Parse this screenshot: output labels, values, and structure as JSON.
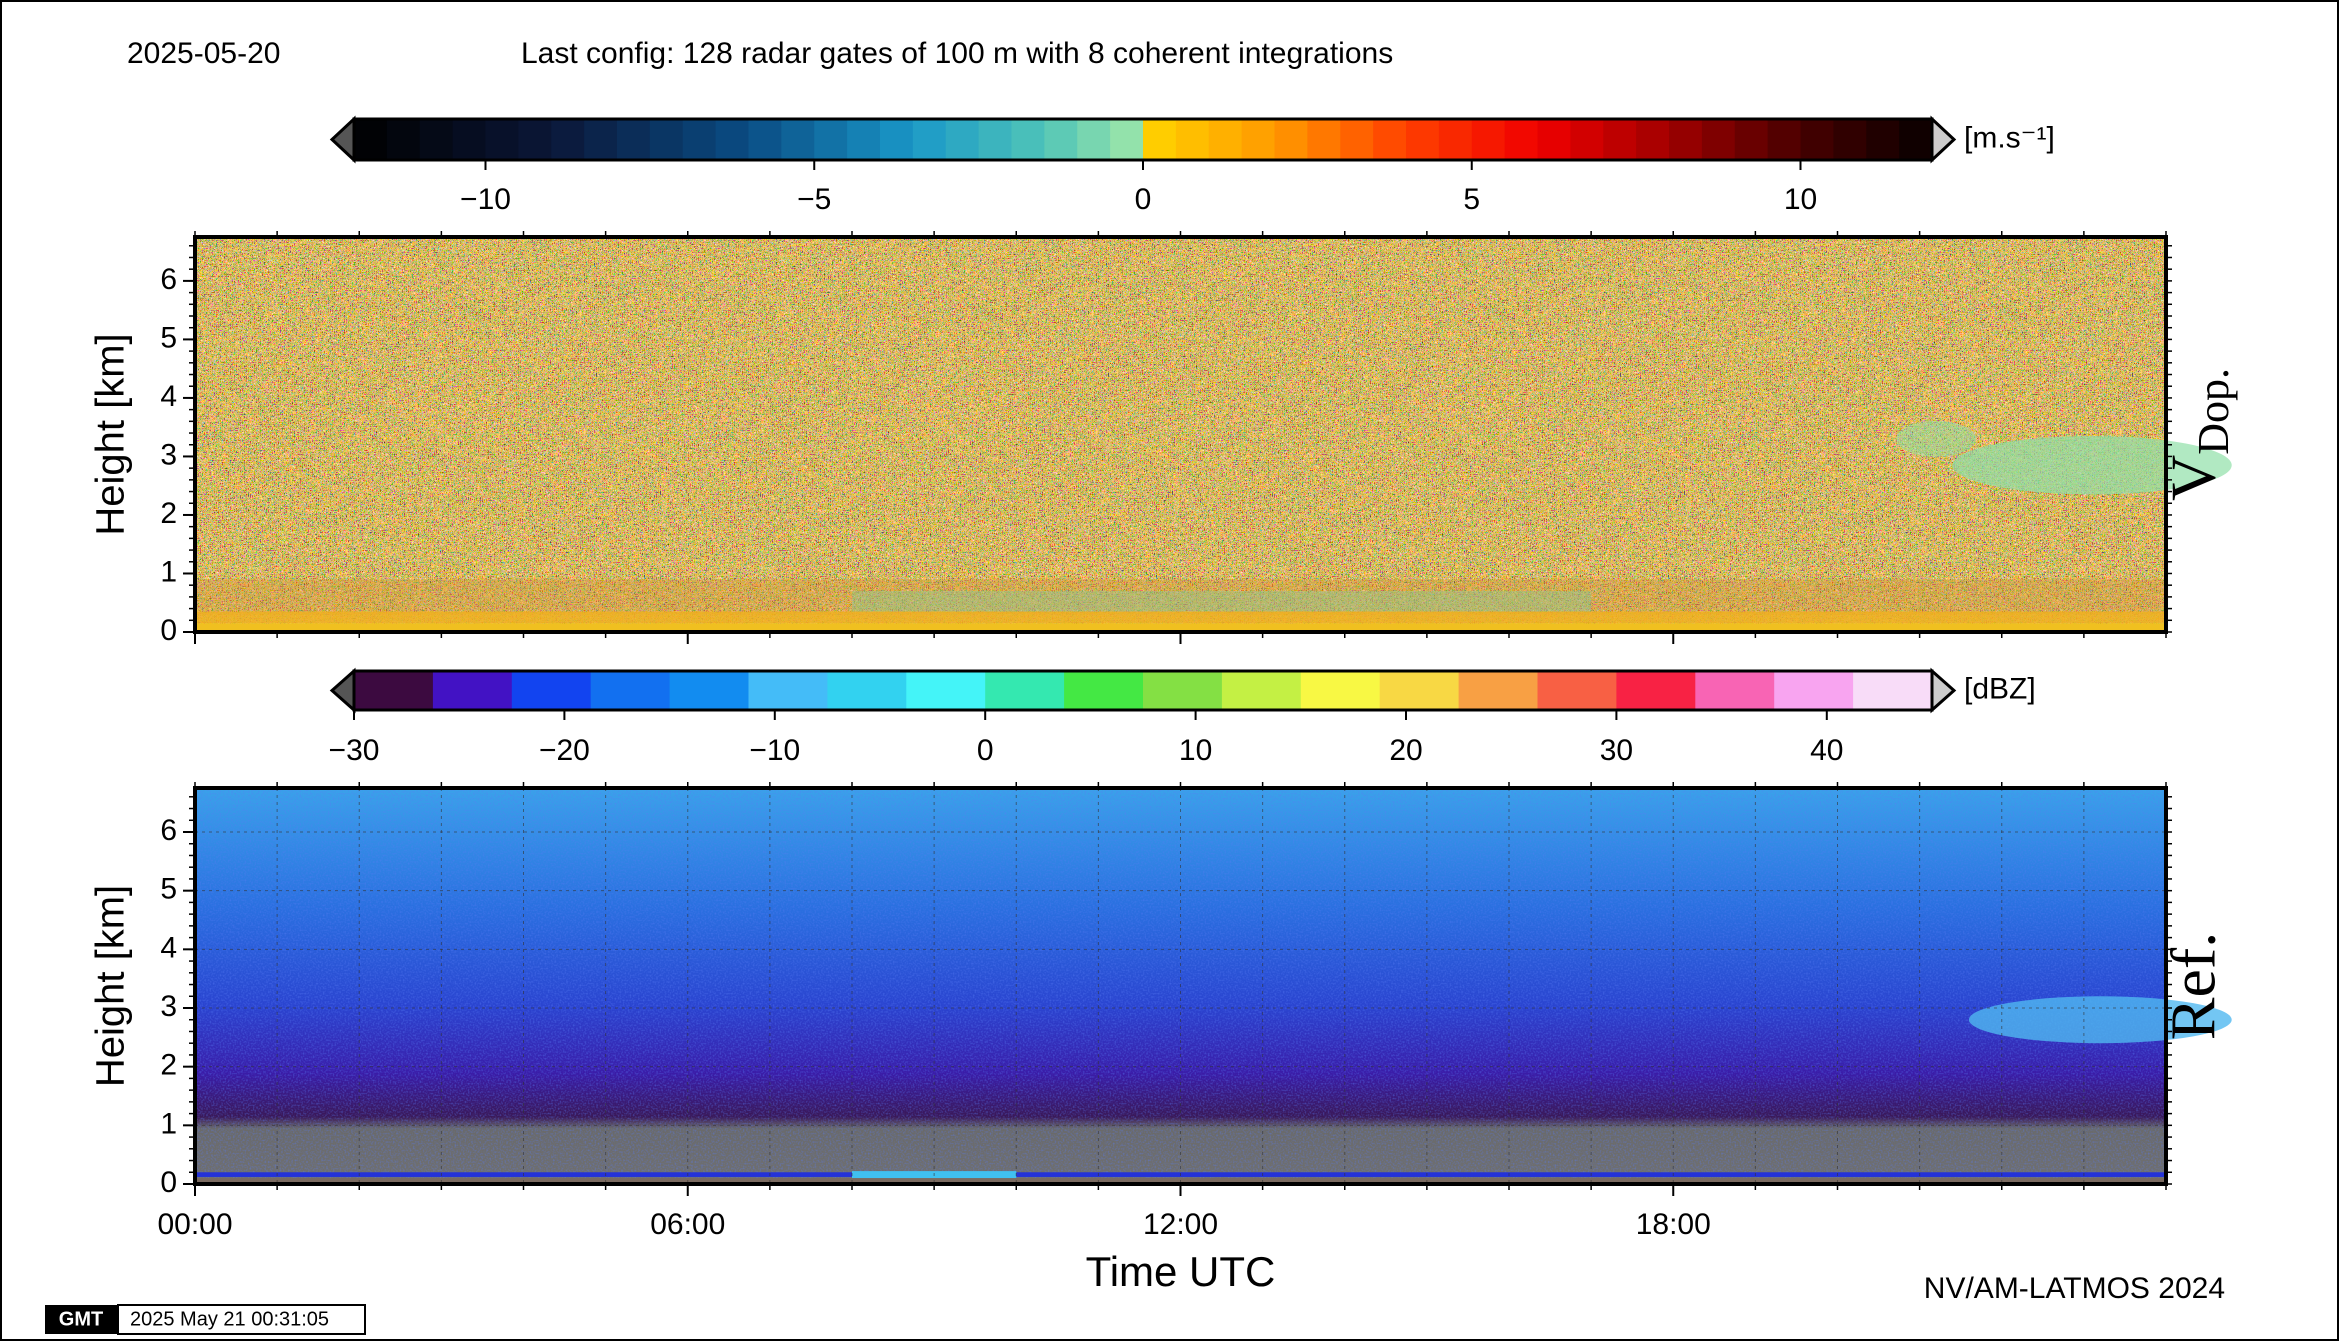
{
  "header": {
    "date": "2025-05-20",
    "config": "Last config: 128 radar gates of 100 m with 8 coherent integrations"
  },
  "footer": {
    "credit": "NV/AM-LATMOS 2024",
    "timestamp": "2025 May 21 00:31:05",
    "logo": "GMT"
  },
  "chart_data": [
    {
      "type": "heatmap",
      "panel_label": "V",
      "panel_label_sub": "Dop.",
      "ylabel": "Height [km]",
      "xlim": [
        0,
        24
      ],
      "xticks": [
        0,
        6,
        12,
        18
      ],
      "ylim": [
        0,
        6.75
      ],
      "yticks": [
        0,
        1,
        2,
        3,
        4,
        5,
        6
      ],
      "colorbar": {
        "unit": "[m.s⁻¹]",
        "lim": [
          -12,
          12
        ],
        "ticks": [
          {
            "value": -10,
            "label": "−10"
          },
          {
            "value": -5,
            "label": "−5"
          },
          0,
          5,
          10
        ],
        "step": 0.5,
        "colormap": [
          {
            "value": -12,
            "color": "#000000"
          },
          {
            "value": -9,
            "color": "#0b1738"
          },
          {
            "value": -6,
            "color": "#0a4c84"
          },
          {
            "value": -3.5,
            "color": "#1a98c8"
          },
          {
            "value": -1.5,
            "color": "#50c4b8"
          },
          {
            "value": 0,
            "color": "#a0e8a8"
          },
          {
            "value": 0,
            "color": "#ffd400"
          },
          {
            "value": 2,
            "color": "#ff9a00"
          },
          {
            "value": 4,
            "color": "#ff4000"
          },
          {
            "value": 6,
            "color": "#f00000"
          },
          {
            "value": 8,
            "color": "#a00000"
          },
          {
            "value": 10,
            "color": "#480000"
          },
          {
            "value": 12,
            "color": "#080000"
          }
        ]
      }
    },
    {
      "type": "heatmap",
      "panel_label": "Ref.",
      "ylabel": "Height [km]",
      "xlabel": "Time UTC",
      "xlim": [
        0,
        24
      ],
      "xticks": [
        {
          "value": 0,
          "label": "00:00"
        },
        {
          "value": 6,
          "label": "06:00"
        },
        {
          "value": 12,
          "label": "12:00"
        },
        {
          "value": 18,
          "label": "18:00"
        }
      ],
      "ylim": [
        0,
        6.75
      ],
      "yticks": [
        0,
        1,
        2,
        3,
        4,
        5,
        6
      ],
      "grid": true,
      "colorbar": {
        "unit": "[dBZ]",
        "lim": [
          -30,
          45
        ],
        "ticks": [
          {
            "value": -30,
            "label": "−30"
          },
          {
            "value": -20,
            "label": "−20"
          },
          {
            "value": -10,
            "label": "−10"
          },
          0,
          10,
          20,
          30,
          40
        ],
        "colors": [
          "#3c0a40",
          "#4212c4",
          "#1244f0",
          "#1270f0",
          "#128cf0",
          "#44bcf8",
          "#32d2f0",
          "#44f4f8",
          "#34e8b0",
          "#44e844",
          "#84e044",
          "#c4f044",
          "#f8f844",
          "#f8d844",
          "#f8a044",
          "#f86044",
          "#f82244",
          "#f864b4",
          "#f8a4f0",
          "#f8dcf8"
        ]
      }
    }
  ]
}
